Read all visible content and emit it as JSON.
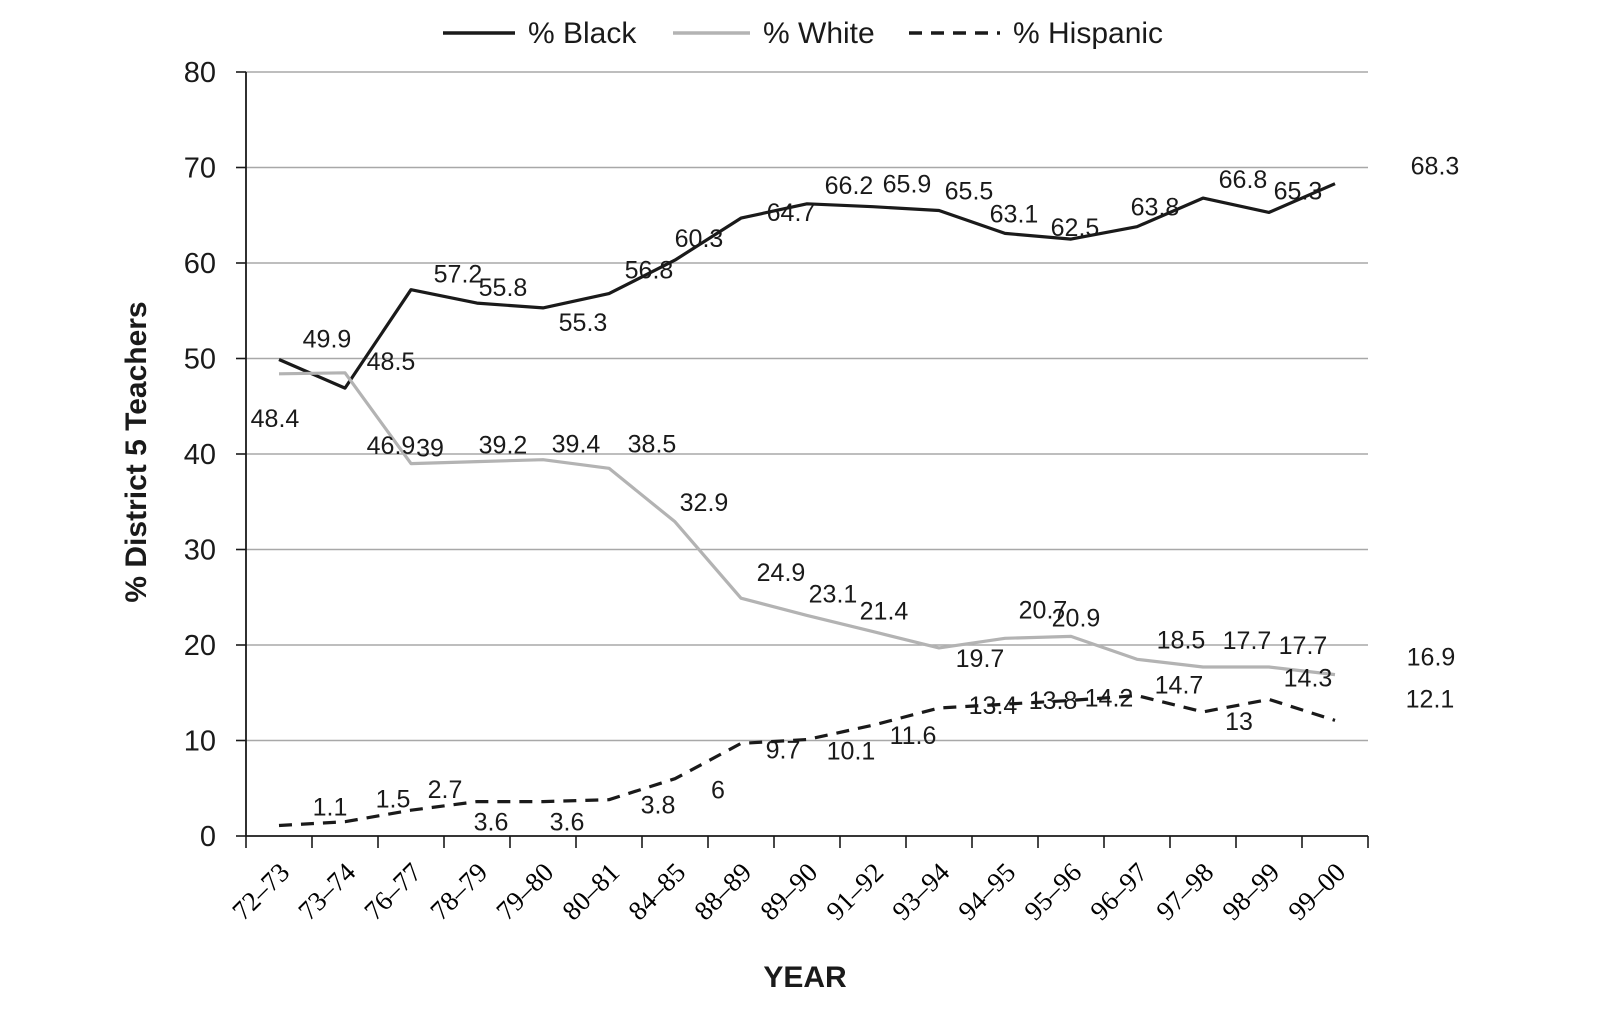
{
  "chart_data": {
    "type": "line",
    "title": "",
    "xlabel": "YEAR",
    "ylabel": "% District 5 Teachers",
    "ylim": [
      0,
      80
    ],
    "yticks": [
      "0",
      "10",
      "20",
      "30",
      "40",
      "50",
      "60",
      "70",
      "80"
    ],
    "grid": "horizontal",
    "legend_position": "top",
    "categories": [
      "72–73",
      "73–74",
      "76–77",
      "78–79",
      "79–80",
      "80–81",
      "84–85",
      "88–89",
      "89–90",
      "91–92",
      "93–94",
      "94–95",
      "95–96",
      "96–97",
      "97–98",
      "98–99",
      "99–00"
    ],
    "series": [
      {
        "name": "% Black",
        "color": "#1a1a1a",
        "style": "solid",
        "values": [
          49.9,
          46.9,
          57.2,
          55.8,
          55.3,
          56.8,
          60.3,
          64.7,
          66.2,
          65.9,
          65.5,
          63.1,
          62.5,
          63.8,
          66.8,
          65.3,
          68.3
        ],
        "labels": [
          "49.9",
          "46.9",
          "57.2",
          "55.8",
          "55.3",
          "56.8",
          "60.3",
          "64.7",
          "66.2",
          "65.9",
          "65.5",
          "63.1",
          "62.5",
          "63.8",
          "66.8",
          "65.3",
          "68.3"
        ]
      },
      {
        "name": "% White",
        "color": "#b3b3b3",
        "style": "solid",
        "values": [
          48.4,
          48.5,
          39,
          39.2,
          39.4,
          38.5,
          32.9,
          24.9,
          23.1,
          21.4,
          19.7,
          20.7,
          20.9,
          18.5,
          17.7,
          17.7,
          16.9
        ],
        "labels": [
          "48.4",
          "48.5",
          "39",
          "39.2",
          "39.4",
          "38.5",
          "32.9",
          "24.9",
          "23.1",
          "21.4",
          "19.7",
          "20.7",
          "20.9",
          "18.5",
          "17.7",
          "17.7",
          "16.9"
        ]
      },
      {
        "name": "% Hispanic",
        "color": "#1a1a1a",
        "style": "dashed",
        "values": [
          1.1,
          1.5,
          2.7,
          3.6,
          3.6,
          3.8,
          6,
          9.7,
          10.1,
          11.6,
          13.4,
          13.8,
          14.2,
          14.7,
          13,
          14.3,
          12.1
        ],
        "labels": [
          "1.1",
          "1.5",
          "2.7",
          "3.6",
          "3.6",
          "3.8",
          "6",
          "9.7",
          "10.1",
          "11.6",
          "13.4",
          "13.8",
          "14.2",
          "14.7",
          "13",
          "14.3",
          "12.1"
        ]
      }
    ]
  }
}
